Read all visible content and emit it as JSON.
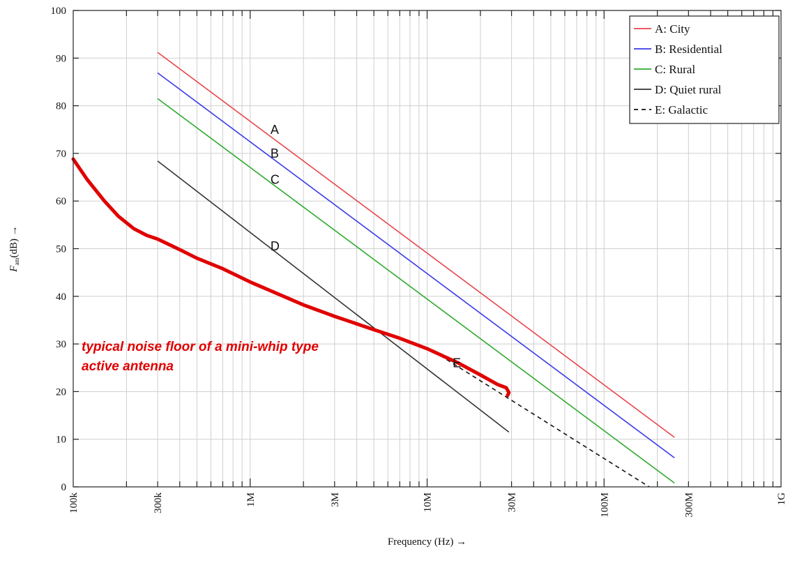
{
  "chart_data": {
    "type": "line",
    "title": "",
    "xlabel": "Frequency (Hz) →",
    "ylabel": "(dB) →",
    "ylabel_symbol": "F",
    "ylabel_subscript": "am",
    "x_scale": "log",
    "xlim": [
      100000,
      1000000000
    ],
    "ylim": [
      0,
      100
    ],
    "grid": true,
    "legend_position": "top-right",
    "x_ticks": [
      {
        "value": 100000,
        "label": "100k"
      },
      {
        "value": 300000,
        "label": "300k"
      },
      {
        "value": 1000000,
        "label": "1M"
      },
      {
        "value": 3000000,
        "label": "3M"
      },
      {
        "value": 10000000,
        "label": "10M"
      },
      {
        "value": 30000000,
        "label": "30M"
      },
      {
        "value": 100000000,
        "label": "100M"
      },
      {
        "value": 300000000,
        "label": "300M"
      },
      {
        "value": 1000000000,
        "label": "1G"
      }
    ],
    "y_ticks": [
      0,
      10,
      20,
      30,
      40,
      50,
      60,
      70,
      80,
      90,
      100
    ],
    "series": [
      {
        "name": "A: City",
        "letter": "A",
        "letter_at": {
          "x": 1400000,
          "y": 75
        },
        "color": "#e8454a",
        "dash": "solid",
        "points": [
          [
            300000,
            91.2
          ],
          [
            250000000,
            10.4
          ]
        ]
      },
      {
        "name": "B: Residential",
        "letter": "B",
        "letter_at": {
          "x": 1400000,
          "y": 70
        },
        "color": "#3a3ae8",
        "dash": "solid",
        "points": [
          [
            300000,
            86.9
          ],
          [
            250000000,
            6.1
          ]
        ]
      },
      {
        "name": "C: Rural",
        "letter": "C",
        "letter_at": {
          "x": 1400000,
          "y": 64.5
        },
        "color": "#2eaa2e",
        "dash": "solid",
        "points": [
          [
            300000,
            81.5
          ],
          [
            250000000,
            0.8
          ]
        ]
      },
      {
        "name": "D: Quiet rural",
        "letter": "D",
        "letter_at": {
          "x": 1400000,
          "y": 50.5
        },
        "color": "#333333",
        "dash": "solid",
        "points": [
          [
            300000,
            68.4
          ],
          [
            29000000,
            11.5
          ]
        ]
      },
      {
        "name": "E: Galactic",
        "letter": "E",
        "letter_at": {
          "x": 15000000,
          "y": 26
        },
        "color": "#111111",
        "dash": "dashed",
        "points": [
          [
            10000000,
            29.3
          ],
          [
            180000000,
            0
          ]
        ]
      }
    ],
    "overlay_curve": {
      "color": "#e00000",
      "points": [
        [
          100000,
          68.8
        ],
        [
          120000,
          64.5
        ],
        [
          150000,
          60
        ],
        [
          180000,
          56.8
        ],
        [
          220000,
          54.2
        ],
        [
          260000,
          52.8
        ],
        [
          300000,
          52
        ],
        [
          400000,
          49.8
        ],
        [
          500000,
          48
        ],
        [
          700000,
          45.8
        ],
        [
          1000000,
          43
        ],
        [
          1500000,
          40.2
        ],
        [
          2000000,
          38.2
        ],
        [
          3000000,
          35.8
        ],
        [
          5000000,
          33
        ],
        [
          7000000,
          31.2
        ],
        [
          10000000,
          29
        ],
        [
          15000000,
          26
        ],
        [
          20000000,
          23.5
        ],
        [
          25000000,
          21.5
        ],
        [
          28000000,
          20.8
        ],
        [
          29000000,
          19.8
        ],
        [
          28500000,
          19.2
        ]
      ]
    },
    "annotation": {
      "line1": "typical noise floor of a mini-whip type",
      "line2": "active antenna"
    }
  }
}
